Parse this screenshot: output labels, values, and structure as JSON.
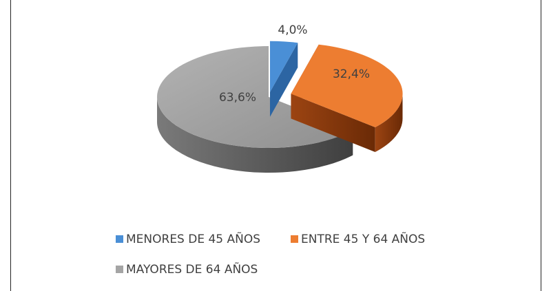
{
  "chart_data": {
    "type": "pie3d",
    "categories": [
      "MENORES DE 45 AÑOS",
      "ENTRE 45 Y 64 AÑOS",
      "MAYORES DE 64 AÑOS"
    ],
    "values": [
      4.0,
      32.4,
      63.6
    ],
    "value_labels": [
      "4,0%",
      "32,4%",
      "63,6%"
    ],
    "colors": [
      "#4a8fd6",
      "#ed7d31",
      "#a5a5a5"
    ],
    "legend": "bottom"
  }
}
